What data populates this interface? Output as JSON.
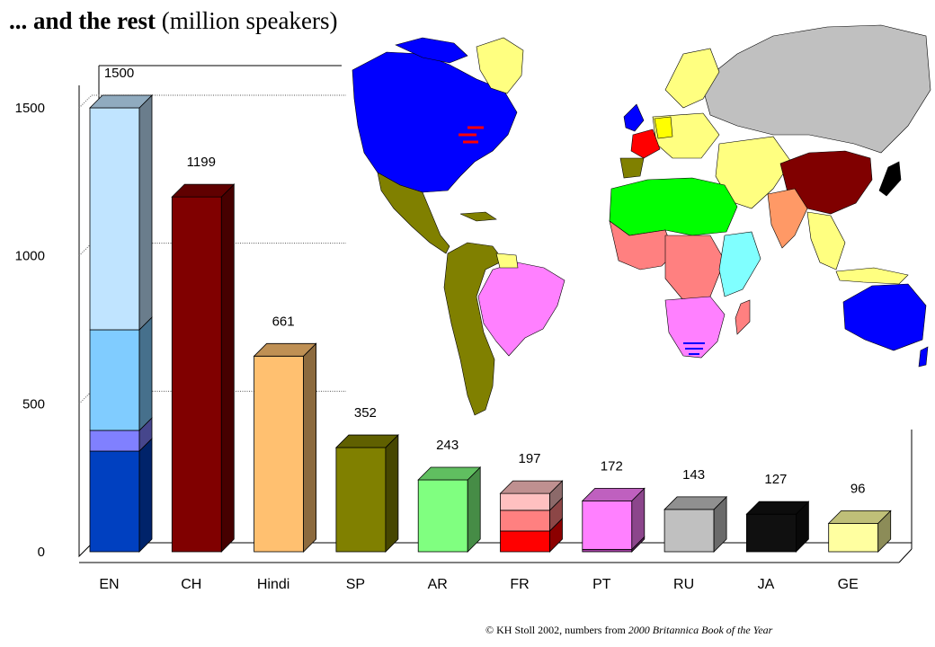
{
  "title": {
    "bold": "... and the rest",
    "normal": "(million speakers)"
  },
  "footer": {
    "prefix": "© KH Stoll 2002, numbers from",
    "source": "2000 Britannica Book of the Year"
  },
  "chart_data": {
    "type": "bar",
    "categories": [
      "EN",
      "CH",
      "Hindi",
      "SP",
      "AR",
      "FR",
      "PT",
      "RU",
      "JA",
      "GE"
    ],
    "values": [
      1500,
      1199,
      661,
      352,
      243,
      197,
      172,
      143,
      127,
      96
    ],
    "value_labels": [
      "1500",
      "1199",
      "661",
      "352",
      "243",
      "197",
      "172",
      "143",
      "127",
      "96"
    ],
    "ylim": [
      0,
      1500
    ],
    "yticks": [
      0,
      500,
      1000,
      1500
    ],
    "ytick_labels": [
      "0",
      "500",
      "1000",
      "1500"
    ],
    "grid": true,
    "style": "3d",
    "colors": [
      "#0040C0",
      "#800000",
      "#FFC070",
      "#808000",
      "#80FF80",
      "#FF8080",
      "#FF80FF",
      "#C0C0C0",
      "#101010",
      "#FFFFA0"
    ],
    "stacked_segments": {
      "EN": [
        {
          "value": 340,
          "color": "#0040C0"
        },
        {
          "value": 70,
          "color": "#8080FF"
        },
        {
          "value": 340,
          "color": "#80CCFF"
        },
        {
          "value": 750,
          "color": "#C0E4FF"
        }
      ],
      "FR": [
        {
          "value": 70,
          "color": "#FF0000"
        },
        {
          "value": 70,
          "color": "#FF8080"
        },
        {
          "value": 57,
          "color": "#FFC0C0"
        }
      ],
      "PT": [
        {
          "value": 8,
          "color": "#A040A0"
        },
        {
          "value": 164,
          "color": "#FF80FF"
        }
      ]
    }
  },
  "map": {
    "icon": "world-map-icon",
    "colors": {
      "english": "#0000FF",
      "chinese": "#800000",
      "spanish": "#808000",
      "portuguese": "#FF80FF",
      "arabic": "#00FF00",
      "french": "#FF8080",
      "russian": "#C0C0C0",
      "other": "#FFFF80",
      "ocean": "#FFFFFF"
    }
  }
}
